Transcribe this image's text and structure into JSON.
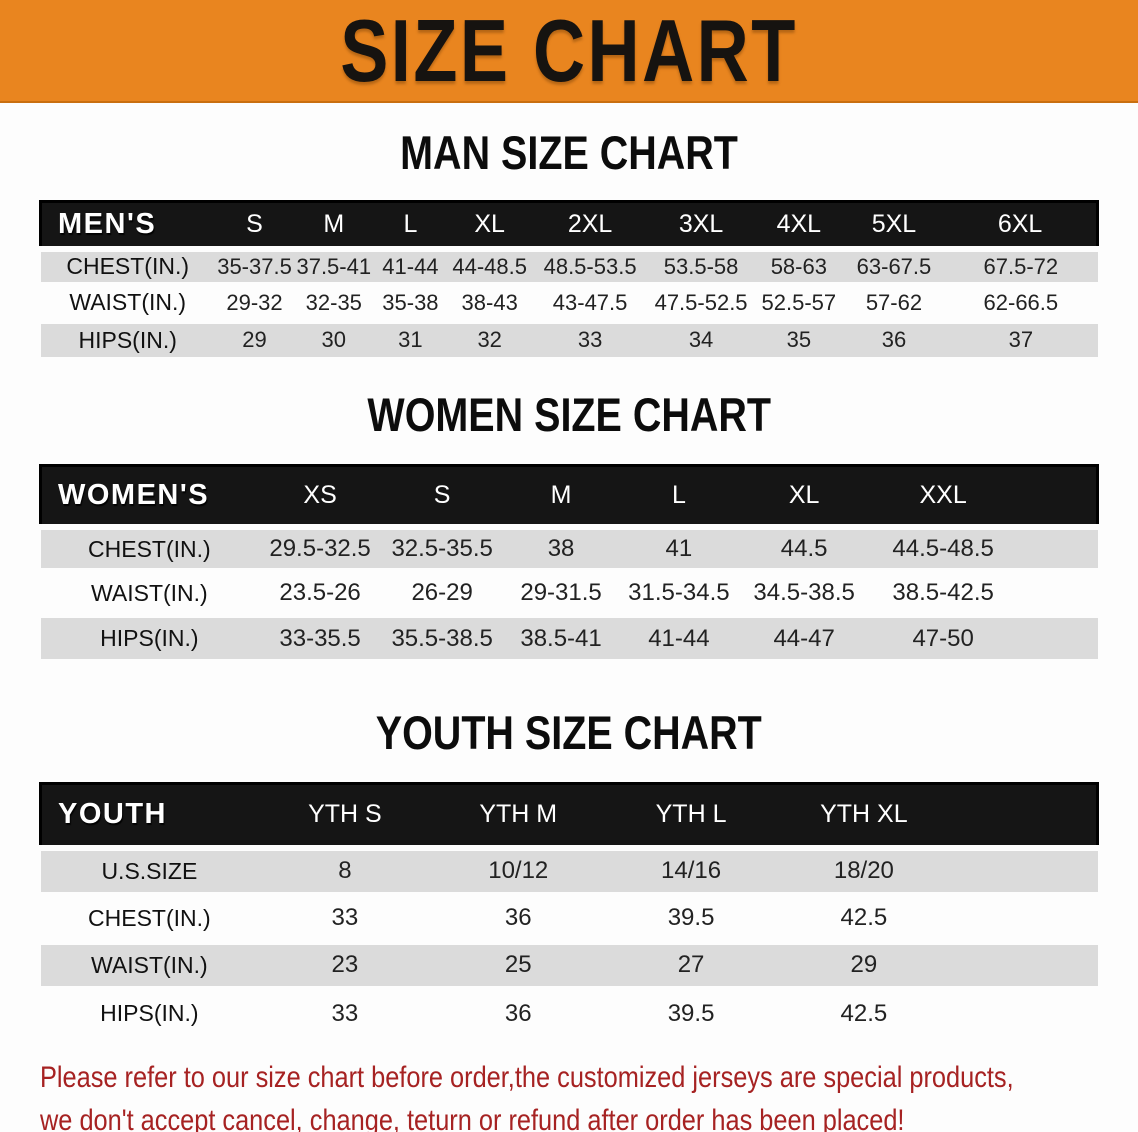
{
  "banner": {
    "title": "SIZE CHART",
    "background_color": "#E9851F",
    "text_color": "#161310"
  },
  "sections": [
    {
      "heading": "MAN SIZE CHART",
      "table": {
        "corner_label": "MEN'S",
        "columns": [
          "S",
          "M",
          "L",
          "XL",
          "2XL",
          "3XL",
          "4XL",
          "5XL",
          "6XL"
        ],
        "rows": [
          {
            "label": "CHEST(IN.)",
            "values": [
              "35-37.5",
              "37.5-41",
              "41-44",
              "44-48.5",
              "48.5-53.5",
              "53.5-58",
              "58-63",
              "63-67.5",
              "67.5-72"
            ]
          },
          {
            "label": "WAIST(IN.)",
            "values": [
              "29-32",
              "32-35",
              "35-38",
              "38-43",
              "43-47.5",
              "47.5-52.5",
              "52.5-57",
              "57-62",
              "62-66.5"
            ]
          },
          {
            "label": "HIPS(IN.)",
            "values": [
              "29",
              "30",
              "31",
              "32",
              "33",
              "34",
              "35",
              "36",
              "37"
            ]
          }
        ]
      }
    },
    {
      "heading": "WOMEN SIZE CHART",
      "table": {
        "corner_label": "WOMEN'S",
        "columns": [
          "XS",
          "S",
          "M",
          "L",
          "XL",
          "XXL"
        ],
        "rows": [
          {
            "label": "CHEST(IN.)",
            "values": [
              "29.5-32.5",
              "32.5-35.5",
              "38",
              "41",
              "44.5",
              "44.5-48.5"
            ]
          },
          {
            "label": "WAIST(IN.)",
            "values": [
              "23.5-26",
              "26-29",
              "29-31.5",
              "31.5-34.5",
              "34.5-38.5",
              "38.5-42.5"
            ]
          },
          {
            "label": "HIPS(IN.)",
            "values": [
              "33-35.5",
              "35.5-38.5",
              "38.5-41",
              "41-44",
              "44-47",
              "47-50"
            ]
          }
        ]
      }
    },
    {
      "heading": "YOUTH SIZE CHART",
      "table": {
        "corner_label": "YOUTH",
        "columns": [
          "YTH S",
          "YTH M",
          "YTH L",
          "YTH XL"
        ],
        "rows": [
          {
            "label": "U.S.SIZE",
            "values": [
              "8",
              "10/12",
              "14/16",
              "18/20"
            ]
          },
          {
            "label": "CHEST(IN.)",
            "values": [
              "33",
              "36",
              "39.5",
              "42.5"
            ]
          },
          {
            "label": "WAIST(IN.)",
            "values": [
              "23",
              "25",
              "27",
              "29"
            ]
          },
          {
            "label": "HIPS(IN.)",
            "values": [
              "33",
              "36",
              "39.5",
              "42.5"
            ]
          }
        ]
      }
    }
  ],
  "disclaimer": {
    "line1": "Please refer to our size chart before order,the customized jerseys are special products,",
    "line2": "we don't accept cancel, change, teturn or refund after order has been placed!",
    "text_color": "#A62222"
  },
  "colors": {
    "banner_orange": "#E9851F",
    "table_header_black": "#151515",
    "row_stripe_gray": "#DBDBDB",
    "disclaimer_red": "#A62222"
  }
}
